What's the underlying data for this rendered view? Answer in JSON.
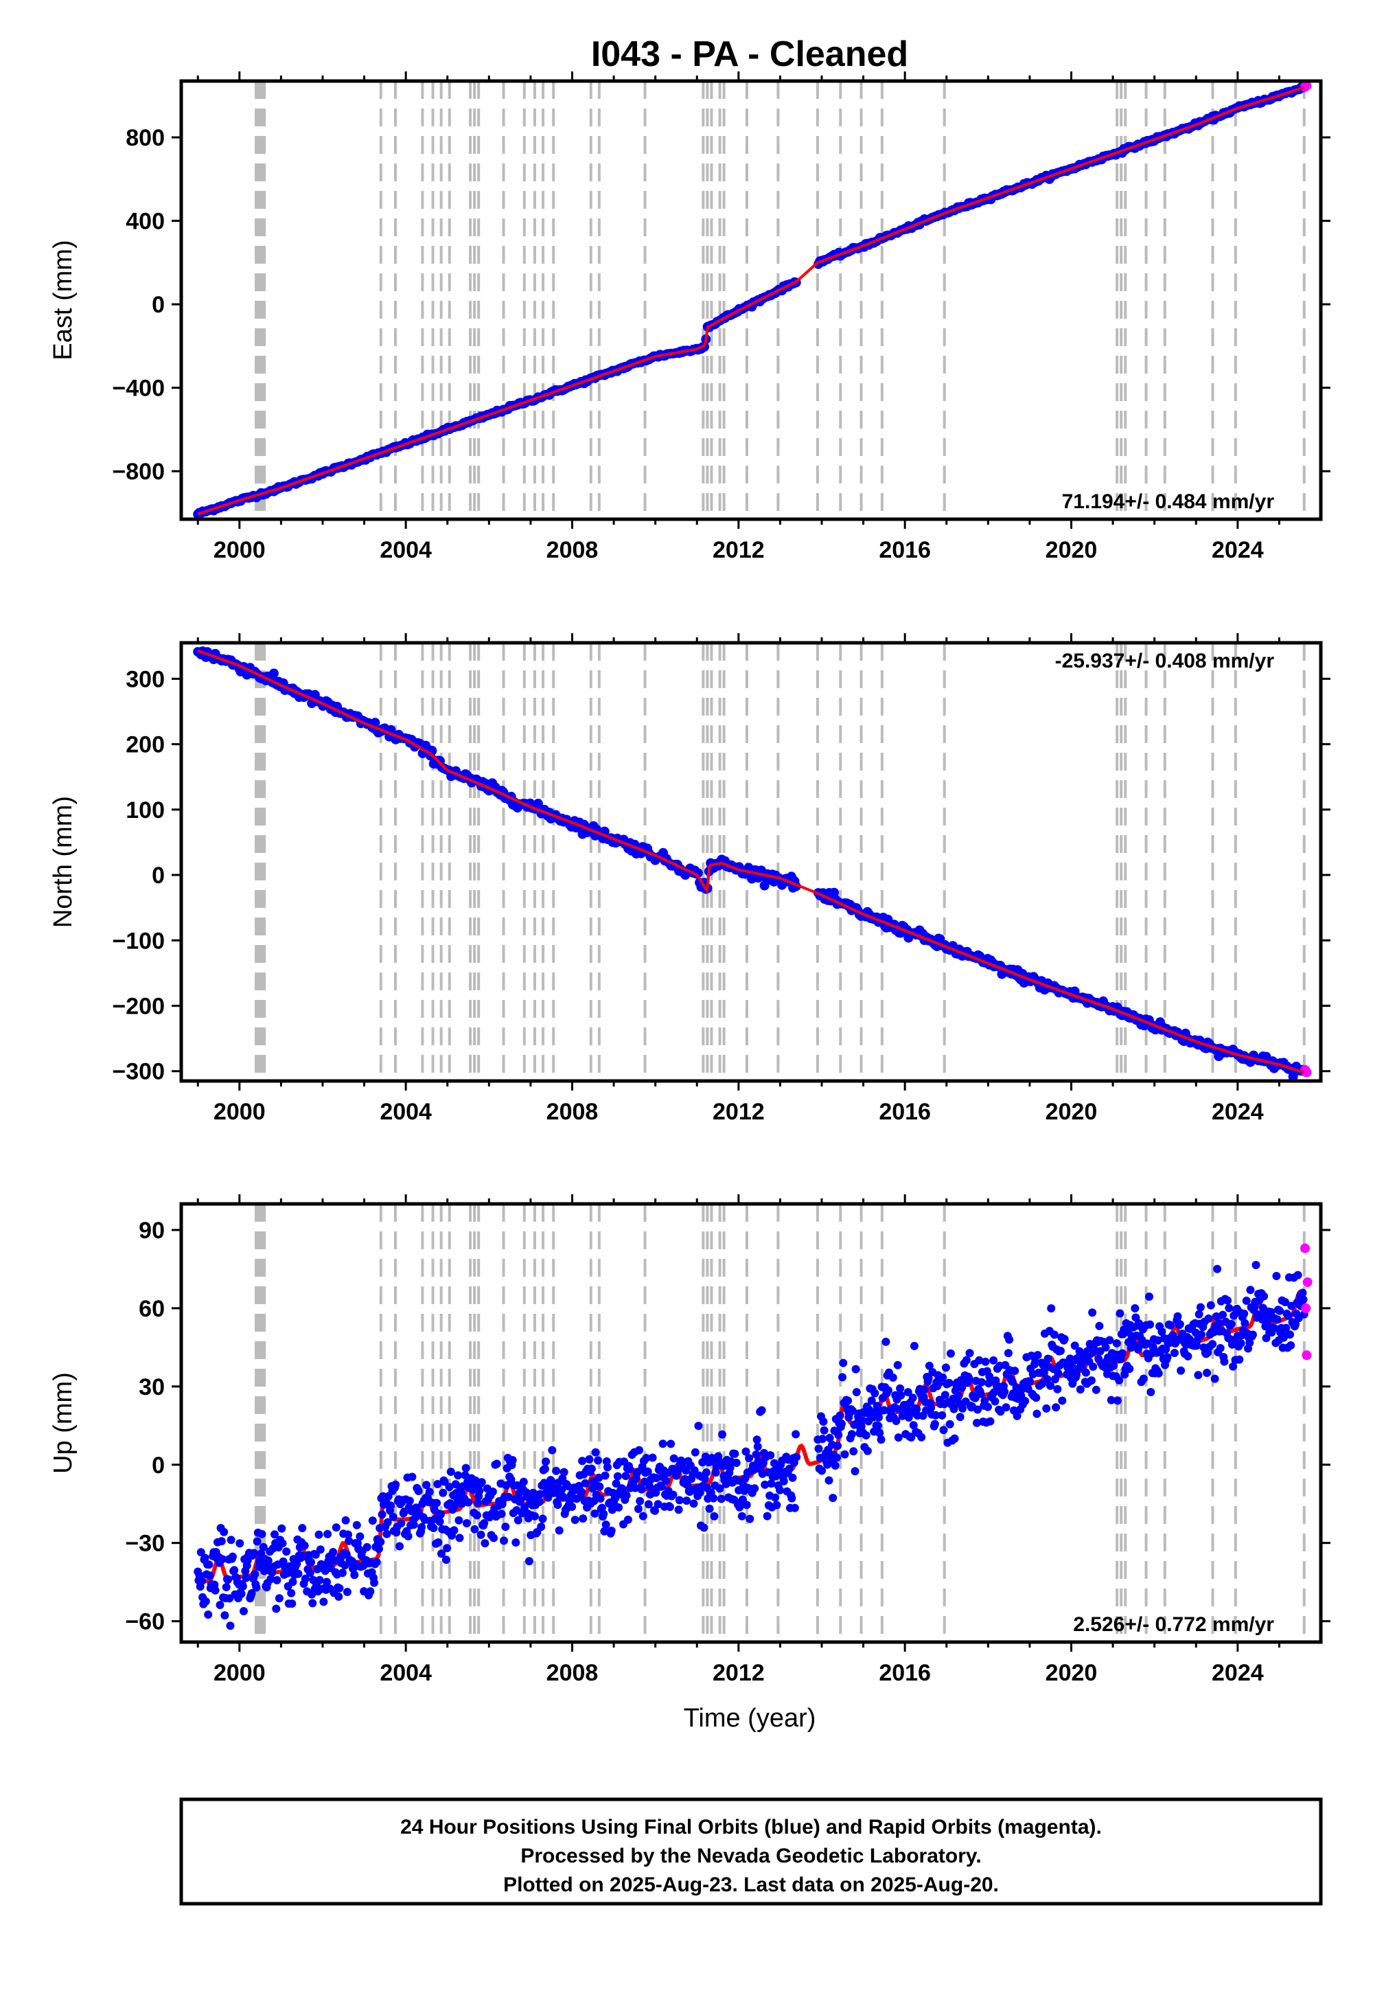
{
  "title": "I043  - PA - Cleaned",
  "xlabel": "Time (year)",
  "x_ticks": [
    2000,
    2004,
    2008,
    2012,
    2016,
    2020,
    2024
  ],
  "xlim": [
    1998.6,
    2026.0
  ],
  "footer": {
    "line1": "24 Hour Positions Using Final Orbits (blue) and Rapid Orbits (magenta).",
    "line2": "Processed by the Nevada Geodetic Laboratory.",
    "line3": "Plotted on 2025-Aug-23. Last data on 2025-Aug-20."
  },
  "colors": {
    "final_orbits": "#0000ff",
    "rapid_orbits": "#ff00ff",
    "model": "#ff0000",
    "event_lines": "#bbbbbb"
  },
  "event_lines": [
    2000.4,
    2000.45,
    2000.5,
    2000.55,
    2000.6,
    2003.4,
    2003.75,
    2004.4,
    2004.65,
    2004.85,
    2005.05,
    2005.55,
    2005.65,
    2005.75,
    2006.35,
    2006.85,
    2007.1,
    2007.3,
    2007.55,
    2008.45,
    2008.65,
    2009.75,
    2011.15,
    2011.25,
    2011.35,
    2011.55,
    2011.65,
    2012.2,
    2012.95,
    2013.9,
    2014.45,
    2014.95,
    2015.45,
    2016.95,
    2021.1,
    2021.2,
    2021.3,
    2021.8,
    2022.25,
    2023.4,
    2023.95,
    2025.6
  ],
  "chart_data": [
    {
      "type": "scatter",
      "ylabel": "East (mm)",
      "ylim": [
        -1030,
        1070
      ],
      "y_ticks": [
        -800,
        -400,
        0,
        400,
        800
      ],
      "rate_label": "71.194+/- 0.484 mm/yr",
      "rate_position": "bottom-right",
      "series": [
        {
          "name": "Final Orbits (blue)",
          "x": [
            1999.0,
            2000.0,
            2001.0,
            2002.0,
            2003.0,
            2004.0,
            2005.0,
            2006.0,
            2007.0,
            2008.0,
            2009.0,
            2010.0,
            2011.0,
            2011.2,
            2011.25,
            2012.0,
            2013.0,
            2013.4,
            2013.9,
            2015.0,
            2016.0,
            2017.0,
            2018.0,
            2019.0,
            2020.0,
            2021.0,
            2022.0,
            2023.0,
            2024.0,
            2025.0,
            2025.6
          ],
          "y": [
            -1005,
            -940,
            -880,
            -810,
            -740,
            -670,
            -600,
            -530,
            -460,
            -390,
            -320,
            -250,
            -215,
            -195,
            -110,
            -30,
            70,
            110,
            200,
            280,
            360,
            440,
            510,
            580,
            650,
            720,
            790,
            860,
            940,
            1000,
            1040
          ]
        },
        {
          "name": "Rapid Orbits (magenta)",
          "x": [
            2025.62,
            2025.64,
            2025.66
          ],
          "y": [
            1042,
            1045,
            1048
          ]
        },
        {
          "name": "Model",
          "x": [
            1999.0,
            2000.0,
            2001.0,
            2002.0,
            2003.0,
            2004.0,
            2005.0,
            2006.0,
            2007.0,
            2008.0,
            2009.0,
            2010.0,
            2011.0,
            2011.2,
            2011.25,
            2012.0,
            2013.0,
            2013.4,
            2013.9,
            2015.0,
            2016.0,
            2017.0,
            2018.0,
            2019.0,
            2020.0,
            2021.0,
            2022.0,
            2023.0,
            2024.0,
            2025.0,
            2025.6
          ],
          "y": [
            -1005,
            -940,
            -880,
            -810,
            -740,
            -670,
            -600,
            -530,
            -460,
            -390,
            -320,
            -250,
            -215,
            -195,
            -110,
            -30,
            70,
            110,
            200,
            280,
            360,
            440,
            510,
            580,
            650,
            720,
            790,
            860,
            940,
            1000,
            1040
          ]
        }
      ]
    },
    {
      "type": "scatter",
      "ylabel": "North (mm)",
      "ylim": [
        -315,
        355
      ],
      "y_ticks": [
        -300,
        -200,
        -100,
        0,
        100,
        200,
        300
      ],
      "rate_label": "-25.937+/- 0.408 mm/yr",
      "rate_position": "top-right",
      "series": [
        {
          "name": "Final Orbits (blue)",
          "x": [
            1999.0,
            2000.0,
            2001.0,
            2002.0,
            2003.0,
            2004.0,
            2004.6,
            2005.0,
            2006.0,
            2007.0,
            2008.0,
            2009.0,
            2010.0,
            2011.0,
            2011.25,
            2011.3,
            2011.6,
            2012.0,
            2013.0,
            2013.9,
            2015.0,
            2016.0,
            2017.0,
            2018.0,
            2019.0,
            2020.0,
            2021.0,
            2022.0,
            2023.0,
            2024.0,
            2025.0,
            2025.6
          ],
          "y": [
            343,
            320,
            290,
            262,
            232,
            207,
            185,
            160,
            133,
            104,
            80,
            55,
            30,
            0,
            -25,
            15,
            18,
            8,
            -5,
            -28,
            -60,
            -85,
            -110,
            -135,
            -160,
            -183,
            -205,
            -230,
            -255,
            -275,
            -290,
            -302
          ]
        },
        {
          "name": "Rapid Orbits (magenta)",
          "x": [
            2025.62,
            2025.64,
            2025.66
          ],
          "y": [
            -298,
            -300,
            -302
          ]
        },
        {
          "name": "Model",
          "x": [
            1999.0,
            2000.0,
            2001.0,
            2002.0,
            2003.0,
            2004.0,
            2004.6,
            2005.0,
            2006.0,
            2007.0,
            2008.0,
            2009.0,
            2010.0,
            2011.0,
            2011.25,
            2011.3,
            2011.6,
            2012.0,
            2013.0,
            2013.9,
            2015.0,
            2016.0,
            2017.0,
            2018.0,
            2019.0,
            2020.0,
            2021.0,
            2022.0,
            2023.0,
            2024.0,
            2025.0,
            2025.6
          ],
          "y": [
            343,
            320,
            290,
            262,
            232,
            207,
            185,
            160,
            133,
            104,
            80,
            55,
            30,
            0,
            -25,
            15,
            18,
            8,
            -5,
            -28,
            -60,
            -85,
            -110,
            -135,
            -160,
            -183,
            -205,
            -230,
            -255,
            -275,
            -290,
            -302
          ]
        }
      ]
    },
    {
      "type": "scatter",
      "ylabel": "Up (mm)",
      "ylim": [
        -68,
        100
      ],
      "y_ticks": [
        -60,
        -30,
        0,
        30,
        60,
        90
      ],
      "rate_label": "2.526+/- 0.772 mm/yr",
      "rate_position": "bottom-right",
      "series": [
        {
          "name": "Final Orbits (blue)",
          "x": [
            1999.0,
            2000.0,
            2001.0,
            2002.0,
            2003.0,
            2003.35,
            2003.45,
            2004.0,
            2005.0,
            2006.0,
            2007.0,
            2008.0,
            2009.0,
            2010.0,
            2011.0,
            2012.0,
            2013.0,
            2013.9,
            2014.4,
            2014.5,
            2015.0,
            2016.0,
            2017.0,
            2018.0,
            2019.0,
            2020.0,
            2021.0,
            2022.0,
            2023.0,
            2024.0,
            2025.0,
            2025.6
          ],
          "y": [
            -42,
            -40,
            -38,
            -36,
            -34,
            -33,
            -18,
            -18,
            -15,
            -12,
            -12,
            -10,
            -8,
            -6,
            -5,
            -2,
            0,
            4,
            8,
            18,
            20,
            24,
            27,
            30,
            34,
            38,
            42,
            46,
            50,
            55,
            58,
            62
          ]
        },
        {
          "name": "Rapid Orbits (magenta)",
          "x": [
            2025.62,
            2025.64,
            2025.66,
            2025.68
          ],
          "y": [
            83,
            60,
            42,
            70
          ]
        },
        {
          "name": "Model",
          "x": [
            1999.0,
            2000.0,
            2001.0,
            2002.0,
            2003.0,
            2003.35,
            2003.45,
            2004.0,
            2005.0,
            2006.0,
            2007.0,
            2008.0,
            2009.0,
            2010.0,
            2011.0,
            2012.0,
            2013.0,
            2013.9,
            2014.4,
            2014.5,
            2015.0,
            2016.0,
            2017.0,
            2018.0,
            2019.0,
            2020.0,
            2021.0,
            2022.0,
            2023.0,
            2024.0,
            2025.0,
            2025.6
          ],
          "y": [
            -42,
            -40,
            -38,
            -36,
            -34,
            -33,
            -18,
            -18,
            -15,
            -12,
            -12,
            -10,
            -8,
            -6,
            -5,
            -2,
            0,
            4,
            8,
            18,
            20,
            24,
            27,
            30,
            34,
            38,
            42,
            46,
            50,
            55,
            58,
            62
          ]
        }
      ]
    }
  ]
}
